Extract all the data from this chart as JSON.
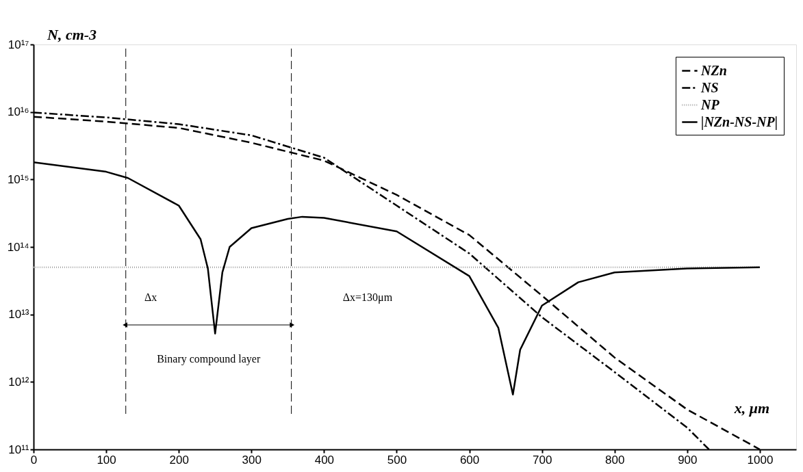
{
  "chart_data": {
    "type": "line",
    "xlabel": "x, μm",
    "ylabel": "N, cm-3",
    "log": "y",
    "grid": false,
    "legend": "top right",
    "xlim": [
      0,
      1050
    ],
    "xticks": [
      0,
      100,
      200,
      300,
      400,
      500,
      600,
      700,
      800,
      900,
      1000
    ],
    "ylim": [
      100000000000.0,
      1e+17
    ],
    "yticks": [
      {
        "value": 100000000000.0,
        "label": "10¹¹"
      },
      {
        "value": 1000000000000.0,
        "label": "10¹²"
      },
      {
        "value": 10000000000000.0,
        "label": "10¹³"
      },
      {
        "value": 100000000000000.0,
        "label": "10¹⁴"
      },
      {
        "value": 1000000000000000.0,
        "label": "10¹⁵"
      },
      {
        "value": 1e+16,
        "label": "10¹⁶"
      },
      {
        "value": 1e+17,
        "label": "10¹⁷"
      }
    ],
    "series": [
      {
        "name": "NZn",
        "color": "#000000",
        "line_style": "dashed",
        "x": [
          0,
          100,
          200,
          300,
          400,
          500,
          600,
          700,
          800,
          900,
          1000
        ],
        "values": [
          8500000000000000.0,
          7200000000000000.0,
          5800000000000000.0,
          3500000000000000.0,
          1900000000000000.0,
          590000000000000.0,
          150000000000000.0,
          19000000000000.0,
          2300000000000.0,
          390000000000.0,
          100000000000.0
        ]
      },
      {
        "name": "NS",
        "color": "#000000",
        "line_style": "dashdot",
        "x": [
          0,
          100,
          200,
          300,
          400,
          500,
          600,
          700,
          800,
          900,
          930
        ],
        "values": [
          9800000000000000.0,
          8300000000000000.0,
          6600000000000000.0,
          4500000000000000.0,
          2100000000000000.0,
          410000000000000.0,
          80000000000000.0,
          9100000000000.0,
          1400000000000.0,
          210000000000.0,
          100000000000.0
        ]
      },
      {
        "name": "NP",
        "color": "#aaaaaa",
        "line_style": "dotted",
        "x": [
          0,
          1000
        ],
        "values": [
          50000000000000.0,
          50000000000000.0
        ]
      },
      {
        "name": "|NZn-NS-NP|",
        "color": "#000000",
        "line_style": "solid",
        "x": [
          0,
          100,
          130,
          200,
          230,
          240,
          250,
          260,
          270,
          300,
          350,
          370,
          400,
          500,
          600,
          640,
          660,
          670,
          700,
          750,
          800,
          900,
          1000
        ],
        "values": [
          1800000000000000.0,
          1300000000000000.0,
          1050000000000000.0,
          410000000000000.0,
          130000000000000.0,
          48000000000000.0,
          5200000000000.0,
          42000000000000.0,
          100000000000000.0,
          190000000000000.0,
          260000000000000.0,
          280000000000000.0,
          270000000000000.0,
          170000000000000.0,
          37000000000000.0,
          6300000000000.0,
          650000000000.0,
          3000000000000.0,
          13500000000000.0,
          30000000000000.0,
          42000000000000.0,
          48000000000000.0,
          50000000000000.0
        ]
      }
    ],
    "ref_lines": [
      {
        "axis": "x",
        "value": 127,
        "line_style": "dashed"
      },
      {
        "axis": "x",
        "value": 355,
        "line_style": "dashed"
      }
    ],
    "annotations": [
      "Δx",
      "Δx=130μm",
      "Binary compound layer"
    ]
  }
}
